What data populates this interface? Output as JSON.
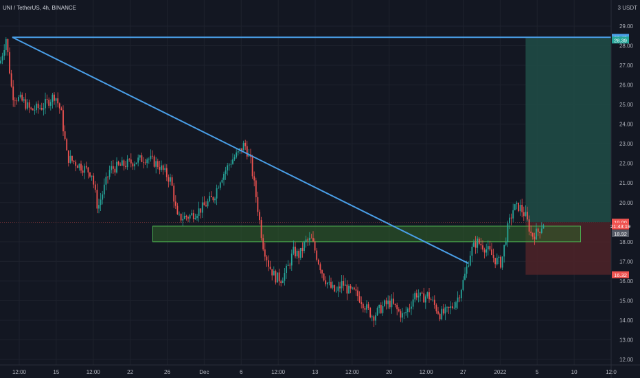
{
  "header": {
    "symbol": "UNI / TetherUS, 4h, BINANCE",
    "quote_unit": "3 USDT"
  },
  "colors": {
    "background": "#131722",
    "grid": "#1e222d",
    "up": "#26a69a",
    "down": "#ef5350",
    "trendline": "#4a9fe8",
    "zone_fill": "#2e5e2a",
    "zone_stroke": "#4caf50",
    "profit": "#1f4a45",
    "loss": "#4b2228"
  },
  "chart_data": {
    "type": "candlestick",
    "y_axis": {
      "min": 12,
      "max": 29,
      "ticks": [
        "12.00",
        "13.00",
        "14.00",
        "15.00",
        "16.00",
        "17.00",
        "18.00",
        "20.00",
        "21.00",
        "22.00",
        "23.00",
        "24.00",
        "25.00",
        "26.00",
        "27.00",
        "28.00",
        "29.00"
      ]
    },
    "x_axis": {
      "ticks": [
        "12:00",
        "15",
        "12:00",
        "22",
        "26",
        "Dec",
        "6",
        "12:00",
        "13",
        "12:00",
        "20",
        "12:00",
        "27",
        "2022",
        "5",
        "10",
        "12:0"
      ]
    },
    "price_tags": [
      {
        "label": "28.43",
        "value": 28.43,
        "color": "#4a9fe8"
      },
      {
        "label": "28.39",
        "value": 28.29,
        "color": "#26a69a"
      },
      {
        "label": "19.00",
        "value": 19.0,
        "color": "#ef5350"
      },
      {
        "label": "21:43:19",
        "value": 18.8,
        "color": "#ef5350"
      },
      {
        "label": "18.92",
        "value": 18.42,
        "color": "#555a66"
      },
      {
        "label": "16.32",
        "value": 16.32,
        "color": "#ef5350"
      }
    ],
    "current_price": 19.0,
    "horizontal_line": 28.43,
    "trendline": {
      "from": [
        0,
        28.43
      ],
      "to": [
        0.89,
        16.9
      ]
    },
    "support_zone": {
      "x_from": 0.25,
      "x_to": 0.95,
      "y_from": 18.0,
      "y_to": 18.8
    },
    "position": {
      "x_from": 0.86,
      "x_to": 1.0,
      "entry": 19.0,
      "target": 28.39,
      "stop": 16.32
    },
    "price_path": [
      [
        0,
        27.1
      ],
      [
        0.01,
        28.4
      ],
      [
        0.02,
        25.5
      ],
      [
        0.04,
        25.1
      ],
      [
        0.05,
        24.7
      ],
      [
        0.07,
        24.9
      ],
      [
        0.09,
        25.5
      ],
      [
        0.1,
        24.6
      ],
      [
        0.11,
        22.3
      ],
      [
        0.13,
        21.9
      ],
      [
        0.15,
        21.5
      ],
      [
        0.16,
        19.7
      ],
      [
        0.18,
        21.7
      ],
      [
        0.2,
        21.9
      ],
      [
        0.22,
        22.1
      ],
      [
        0.24,
        22.3
      ],
      [
        0.26,
        21.9
      ],
      [
        0.28,
        21.1
      ],
      [
        0.29,
        19.2
      ],
      [
        0.31,
        19.3
      ],
      [
        0.33,
        19.7
      ],
      [
        0.35,
        20.3
      ],
      [
        0.36,
        21.2
      ],
      [
        0.38,
        22.2
      ],
      [
        0.39,
        22.5
      ],
      [
        0.4,
        23.0
      ],
      [
        0.41,
        22.1
      ],
      [
        0.42,
        20.1
      ],
      [
        0.43,
        17.9
      ],
      [
        0.44,
        16.8
      ],
      [
        0.45,
        16.2
      ],
      [
        0.46,
        16.1
      ],
      [
        0.47,
        16.6
      ],
      [
        0.48,
        17.5
      ],
      [
        0.49,
        17.3
      ],
      [
        0.5,
        18.0
      ],
      [
        0.51,
        18.1
      ],
      [
        0.52,
        17.1
      ],
      [
        0.53,
        16.2
      ],
      [
        0.54,
        15.7
      ],
      [
        0.55,
        15.4
      ],
      [
        0.56,
        15.9
      ],
      [
        0.57,
        15.5
      ],
      [
        0.58,
        15.4
      ],
      [
        0.59,
        15.1
      ],
      [
        0.6,
        14.6
      ],
      [
        0.61,
        14.2
      ],
      [
        0.62,
        14.5
      ],
      [
        0.63,
        14.8
      ],
      [
        0.64,
        14.9
      ],
      [
        0.65,
        14.5
      ],
      [
        0.66,
        14.2
      ],
      [
        0.67,
        14.7
      ],
      [
        0.68,
        15.4
      ],
      [
        0.69,
        15.1
      ],
      [
        0.7,
        15.3
      ],
      [
        0.71,
        14.8
      ],
      [
        0.72,
        14.3
      ],
      [
        0.73,
        14.4
      ],
      [
        0.74,
        14.7
      ],
      [
        0.75,
        15.2
      ],
      [
        0.76,
        16.2
      ],
      [
        0.77,
        17.5
      ],
      [
        0.78,
        18.0
      ],
      [
        0.79,
        17.8
      ],
      [
        0.8,
        17.5
      ],
      [
        0.81,
        17.1
      ],
      [
        0.82,
        16.9
      ],
      [
        0.83,
        18.6
      ],
      [
        0.84,
        19.7
      ],
      [
        0.85,
        19.8
      ],
      [
        0.86,
        19.3
      ],
      [
        0.87,
        18.3
      ],
      [
        0.88,
        18.5
      ],
      [
        0.89,
        19.0
      ]
    ]
  }
}
